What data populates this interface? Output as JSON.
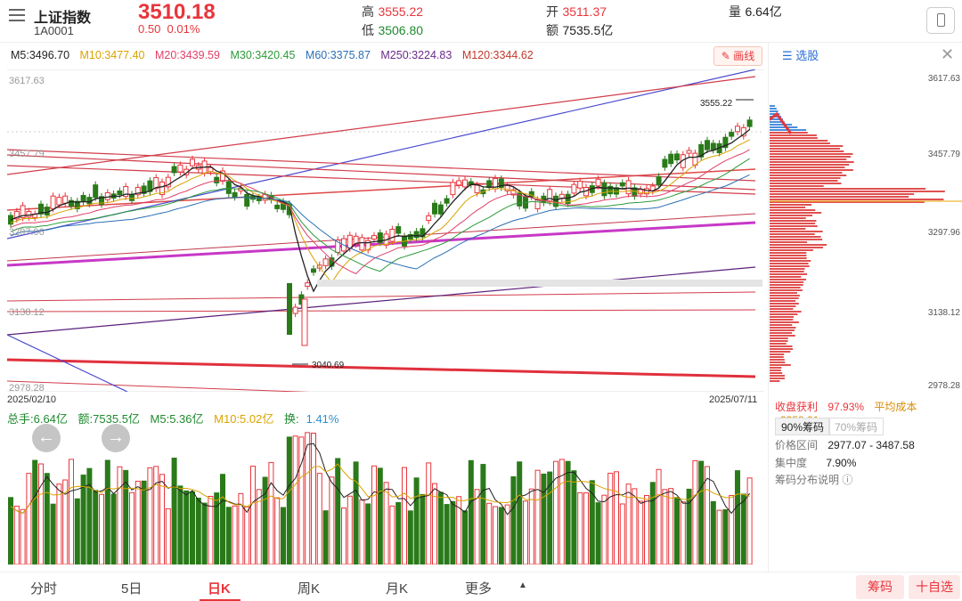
{
  "header": {
    "name": "上证指数",
    "code": "1A0001",
    "price": "3510.18",
    "change": "0.50",
    "change_pct": "0.01%",
    "high_label": "高",
    "high": "3555.22",
    "low_label": "低",
    "low": "3506.80",
    "open_label": "开",
    "open": "3511.37",
    "amount_label": "额",
    "amount": "7535.5亿",
    "volume_label": "量",
    "volume": "6.64亿"
  },
  "ma": [
    {
      "label": "M5:3496.70",
      "color": "#222222"
    },
    {
      "label": "M10:3477.40",
      "color": "#d9a300"
    },
    {
      "label": "M20:3439.59",
      "color": "#e0406a"
    },
    {
      "label": "M30:3420.45",
      "color": "#2d9b3b"
    },
    {
      "label": "M60:3375.87",
      "color": "#2b6fb5"
    },
    {
      "label": "M250:3224.83",
      "color": "#6c2a8c"
    },
    {
      "label": "M120:3344.62",
      "color": "#c0392b"
    }
  ],
  "draw_button": "画线",
  "chart": {
    "yticks": [
      "3617.63",
      "3457.79",
      "3297.96",
      "3138.12",
      "2978.28"
    ],
    "start_date": "2025/02/10",
    "end_date": "2025/07/11",
    "high_mark": "3555.22",
    "low_mark": "3040.69"
  },
  "chip_panel": {
    "select_label": "选股",
    "yticks": [
      "3617.63",
      "3457.79",
      "3297.96",
      "3138.12",
      "2978.28"
    ],
    "profit_label": "收盘获利",
    "profit": "97.93%",
    "avg_cost_label": "平均成本",
    "avg_cost": "3358.01",
    "tab_90": "90%筹码",
    "tab_70": "70%筹码",
    "range_label": "价格区间",
    "range": "2977.07 - 3487.58",
    "concentration_label": "集中度",
    "concentration": "7.90%",
    "help": "筹码分布说明"
  },
  "volume": {
    "total_hand": "总手:6.64亿",
    "amount": "额:7535.5亿",
    "m5": "M5:5.36亿",
    "m10": "M10:5.02亿",
    "turnover_label": "换:",
    "turnover": "1.41%"
  },
  "tabs": [
    "分时",
    "5日",
    "日K",
    "周K",
    "月K",
    "更多"
  ],
  "active_tab": "日K",
  "chip_button": "筹码",
  "watch_button": "十自选",
  "colors": {
    "up": "#e8353b",
    "down": "#2a7a1a",
    "accent": "#e8353b"
  }
}
